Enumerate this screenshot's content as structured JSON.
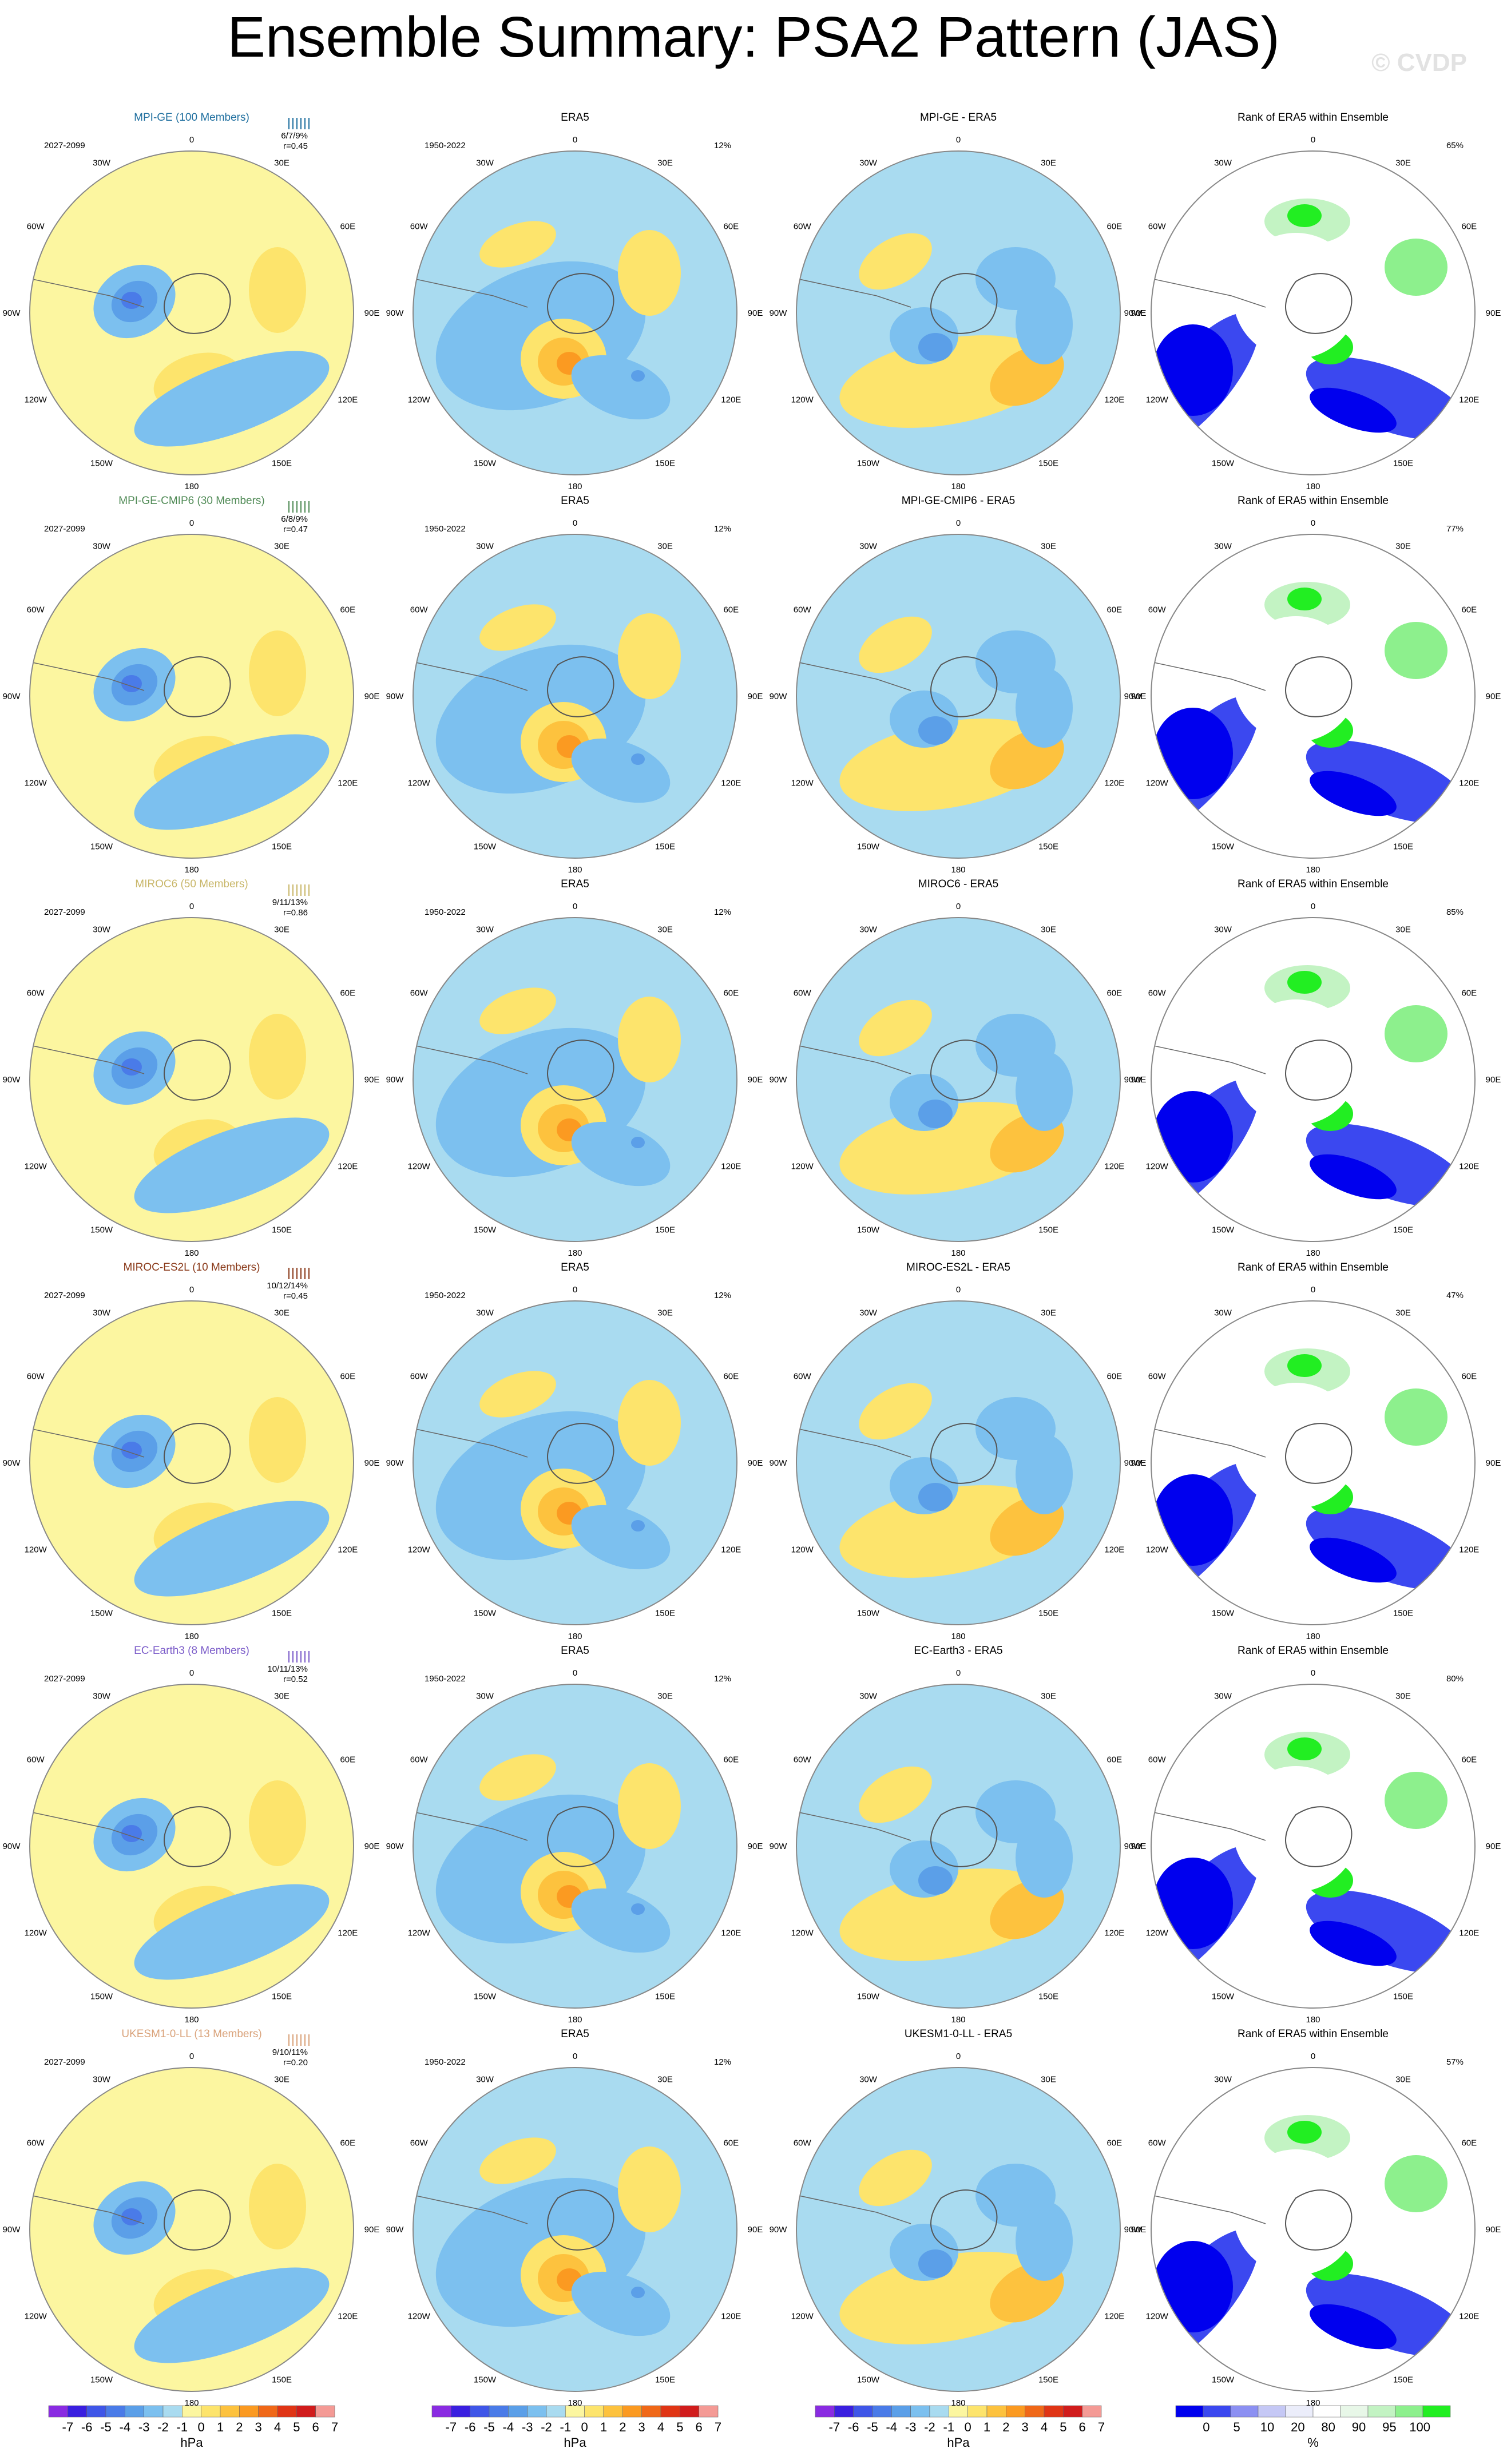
{
  "title": "Ensemble Summary: PSA2 Pattern (JAS)",
  "watermark": "© CVDP",
  "lon_labels": [
    "0",
    "30E",
    "60E",
    "90E",
    "120E",
    "150E",
    "180",
    "150W",
    "120W",
    "90W",
    "60W",
    "30W"
  ],
  "era5_years": "1950-2022",
  "era5_title": "ERA5",
  "rank_title": "Rank of ERA5 within Ensemble",
  "colors": {
    "diff_palette": [
      "#8a2be2",
      "#3a1fe0",
      "#3f56e8",
      "#4a7be8",
      "#5b9fe8",
      "#7cc0ef",
      "#a9dbf0",
      "#fcf6a0",
      "#fde46c",
      "#fdc23e",
      "#fb9a21",
      "#f06818",
      "#e03515",
      "#d11c1c",
      "#f49a95"
    ],
    "rank_palette": [
      "#0000ee",
      "#3b48f0",
      "#8c90f2",
      "#c5c8f5",
      "#ebedfa",
      "#ffffff",
      "#e8f7e8",
      "#c3f3c3",
      "#8df08d",
      "#22ee22"
    ]
  },
  "chart_data": {
    "type": "heatmap",
    "projection": "south polar stereographic",
    "rows": [
      {
        "model": "MPI-GE (100 Members)",
        "model_color": "#1f6f9f",
        "years": "2027-2099",
        "stats": "6/7/9%",
        "r": "r=0.45",
        "era5_pct": "12%",
        "diff_title": "MPI-GE - ERA5",
        "rank_pct": "65%"
      },
      {
        "model": "MPI-GE-CMIP6 (30 Members)",
        "model_color": "#4f8a55",
        "years": "2027-2099",
        "stats": "6/8/9%",
        "r": "r=0.47",
        "era5_pct": "12%",
        "diff_title": "MPI-GE-CMIP6 - ERA5",
        "rank_pct": "77%"
      },
      {
        "model": "MIROC6 (50 Members)",
        "model_color": "#c9b76a",
        "years": "2027-2099",
        "stats": "9/11/13%",
        "r": "r=0.86",
        "era5_pct": "12%",
        "diff_title": "MIROC6 - ERA5",
        "rank_pct": "85%"
      },
      {
        "model": "MIROC-ES2L (10 Members)",
        "model_color": "#8a3a1a",
        "years": "2027-2099",
        "stats": "10/12/14%",
        "r": "r=0.45",
        "era5_pct": "12%",
        "diff_title": "MIROC-ES2L - ERA5",
        "rank_pct": "47%"
      },
      {
        "model": "EC-Earth3 (8 Members)",
        "model_color": "#7b5cc9",
        "years": "2027-2099",
        "stats": "10/11/13%",
        "r": "r=0.52",
        "era5_pct": "12%",
        "diff_title": "EC-Earth3 - ERA5",
        "rank_pct": "80%"
      },
      {
        "model": "UKESM1-0-LL (13 Members)",
        "model_color": "#d9a27a",
        "years": "2027-2099",
        "stats": "9/10/11%",
        "r": "r=0.20",
        "era5_pct": "12%",
        "diff_title": "UKESM1-0-LL - ERA5",
        "rank_pct": "57%"
      }
    ],
    "colorbars": [
      {
        "ticks": [
          "-7",
          "-6",
          "-5",
          "-4",
          "-3",
          "-2",
          "-1",
          "0",
          "1",
          "2",
          "3",
          "4",
          "5",
          "6",
          "7"
        ],
        "unit": "hPa"
      },
      {
        "ticks": [
          "-7",
          "-6",
          "-5",
          "-4",
          "-3",
          "-2",
          "-1",
          "0",
          "1",
          "2",
          "3",
          "4",
          "5",
          "6",
          "7"
        ],
        "unit": "hPa"
      },
      {
        "ticks": [
          "-7",
          "-6",
          "-5",
          "-4",
          "-3",
          "-2",
          "-1",
          "0",
          "1",
          "2",
          "3",
          "4",
          "5",
          "6",
          "7"
        ],
        "unit": "hPa"
      },
      {
        "ticks": [
          "0",
          "5",
          "10",
          "20",
          "80",
          "90",
          "95",
          "100"
        ],
        "unit": "%"
      }
    ]
  }
}
